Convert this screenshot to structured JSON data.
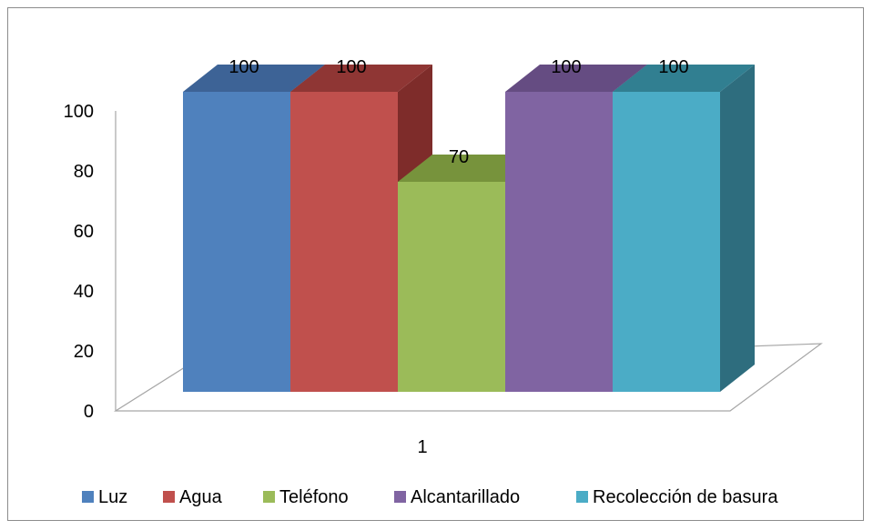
{
  "chart_data": {
    "type": "bar",
    "categories": [
      "1"
    ],
    "series": [
      {
        "name": "Luz",
        "values": [
          100
        ],
        "color": "#4F81BD",
        "side": "#385D8A",
        "top": "#3D6396"
      },
      {
        "name": "Agua",
        "values": [
          100
        ],
        "color": "#C0504D",
        "side": "#7E2C2A",
        "top": "#8F3634"
      },
      {
        "name": "Teléfono",
        "values": [
          70
        ],
        "color": "#9BBB59",
        "side": "#6E8A3A",
        "top": "#77933C"
      },
      {
        "name": "Alcantarillado",
        "values": [
          100
        ],
        "color": "#8064A2",
        "side": "#5C4776",
        "top": "#654C82"
      },
      {
        "name": "Recolección de basura",
        "values": [
          100
        ],
        "color": "#4BACC6",
        "side": "#2E6D7E",
        "top": "#317F91"
      }
    ],
    "data_labels": [
      "100",
      "100",
      "70",
      "100",
      "100"
    ],
    "y_ticks": [
      "0",
      "20",
      "40",
      "60",
      "80",
      "100"
    ],
    "ylim": [
      0,
      100
    ],
    "title": "",
    "xlabel": "",
    "ylabel": "",
    "legend_position": "bottom",
    "grid": false
  }
}
